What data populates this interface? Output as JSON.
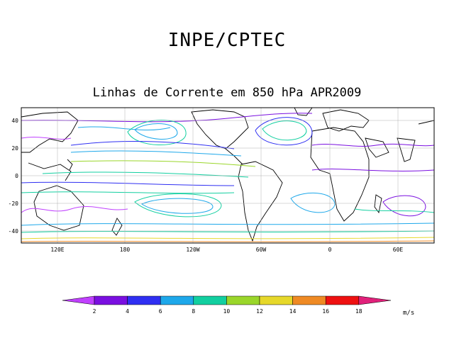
{
  "title": "INPE/CPTEC",
  "subtitle": "Linhas de Corrente em 850 hPa APR2009",
  "map": {
    "lat_ticks": [
      "40",
      "20",
      "0",
      "-20",
      "-40"
    ],
    "lon_ticks": [
      "120E",
      "180",
      "120W",
      "60W",
      "0",
      "60E"
    ]
  },
  "colorbar": {
    "labels": [
      "2",
      "4",
      "6",
      "8",
      "10",
      "12",
      "14",
      "16",
      "18"
    ],
    "colors": [
      "#c040ff",
      "#7a0fe0",
      "#2f2ff2",
      "#1ea8ea",
      "#12cfa0",
      "#9ad62a",
      "#e6d82a",
      "#ef8a24",
      "#ee1111",
      "#e0207a"
    ],
    "unit": "m/s"
  }
}
